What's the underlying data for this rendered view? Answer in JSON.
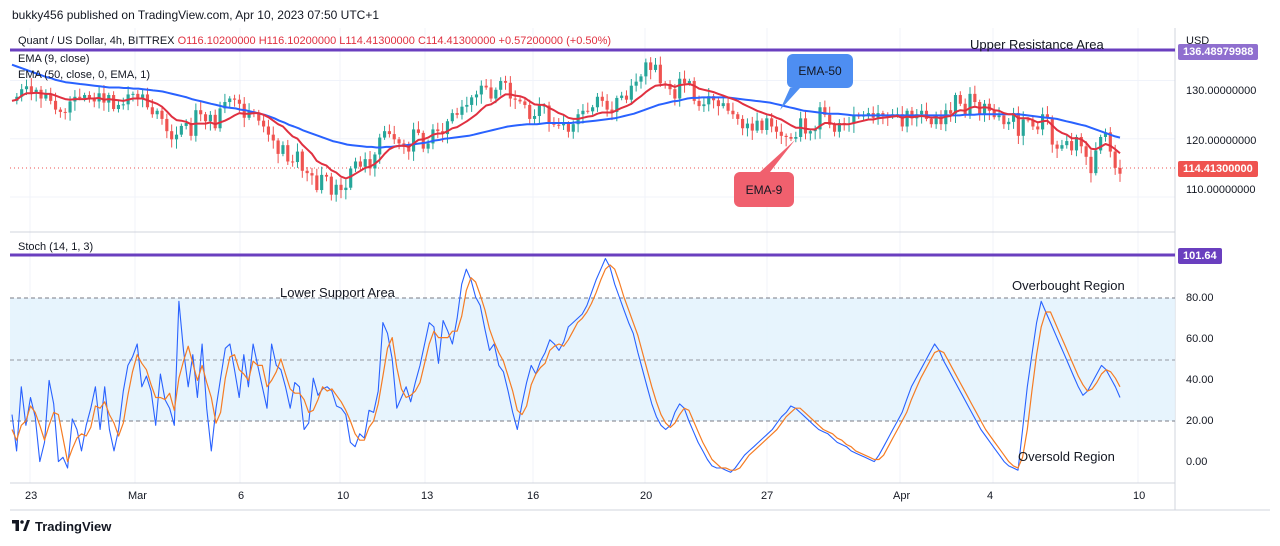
{
  "header": {
    "publisher": "bukky456 published on TradingView.com, Apr 10, 2023 07:50 UTC+1"
  },
  "legend": {
    "symbol": "Quant / US Dollar, 4h, BITTREX",
    "ohlc": "O116.10200000 H116.10200000 L114.41300000 C114.41300000",
    "change": "+0.57200000 (+0.50%)",
    "ema9": "EMA (9, close)",
    "ema50": "EMA (50, close, 0, EMA, 1)",
    "stoch": "Stoch (14, 1, 3)"
  },
  "annotations": {
    "upper_resistance": "Upper Resistance Area",
    "lower_support": "Lower Support Area",
    "overbought": "Overbought Region",
    "oversold": "Oversold Region",
    "ema50_callout": "EMA-50",
    "ema9_callout": "EMA-9"
  },
  "price_axis": {
    "currency": "USD",
    "top_tag": "136.48979988",
    "ticks": [
      "130.00000000",
      "120.00000000",
      "110.00000000"
    ],
    "last_price": "114.41300000"
  },
  "stoch_axis": {
    "top_tag": "101.64",
    "ticks": [
      "80.00",
      "60.00",
      "40.00",
      "20.00",
      "0.00"
    ]
  },
  "time_axis": [
    "23",
    "Mar",
    "6",
    "10",
    "13",
    "16",
    "20",
    "27",
    "Apr",
    "4",
    "10"
  ],
  "footer": {
    "brand": "TradingView"
  },
  "colors": {
    "up": "#26a69a",
    "down": "#ef5350",
    "ema9": "#e03040",
    "ema50": "#2962ff",
    "level": "#6a3fbf",
    "stoch_k": "#2962ff",
    "stoch_d": "#f57c24",
    "band": "#e3f2fd",
    "ema50_callout": "#4e8ef2",
    "ema9_callout": "#f0606e"
  },
  "chart_data": [
    {
      "type": "candlestick",
      "title": "Quant / US Dollar, 4h, BITTREX",
      "ylim": [
        104,
        139
      ],
      "resistance_level": 136.49,
      "last_close": 114.413,
      "close_series": [
        126.5,
        127.2,
        128.5,
        129.0,
        127.8,
        128.4,
        126.9,
        127.6,
        126.5,
        125.0,
        124.6,
        124.5,
        126.4,
        127.2,
        127.0,
        127.5,
        127.0,
        126.4,
        127.8,
        126.2,
        127.5,
        125.1,
        125.8,
        125.9,
        127.6,
        127.7,
        127.0,
        127.6,
        125.4,
        124.2,
        124.8,
        123.4,
        121.3,
        119.9,
        120.7,
        122.2,
        122.7,
        120.5,
        124.9,
        124.2,
        123.0,
        124.1,
        121.8,
        125.2,
        126.3,
        126.9,
        126.7,
        126.0,
        123.6,
        124.7,
        124.3,
        123.1,
        122.1,
        120.7,
        119.7,
        117.4,
        118.9,
        116.1,
        116.0,
        117.8,
        114.5,
        114.1,
        113.7,
        111.2,
        113.8,
        113.5,
        110.4,
        112.1,
        111.2,
        111.6,
        114.9,
        116.1,
        115.2,
        116.5,
        114.9,
        117.3,
        120.2,
        121.3,
        120.8,
        119.9,
        119.2,
        118.6,
        117.8,
        121.6,
        121.0,
        118.3,
        119.2,
        121.6,
        121.3,
        120.8,
        123.0,
        124.4,
        124.1,
        125.5,
        125.8,
        127.1,
        127.6,
        129.1,
        128.8,
        126.9,
        128.4,
        129.9,
        129.6,
        126.9,
        126.7,
        126.4,
        125.8,
        123.4,
        123.9,
        125.7,
        125.7,
        122.8,
        122.4,
        122.3,
        122.6,
        121.2,
        122.5,
        124.2,
        124.8,
        124.7,
        125.4,
        127.2,
        126.5,
        125.0,
        124.6,
        127.0,
        127.4,
        126.7,
        129.1,
        129.8,
        130.7,
        133.1,
        131.8,
        132.7,
        129.5,
        129.4,
        128.5,
        126.9,
        130.3,
        129.5,
        129.9,
        126.5,
        125.6,
        125.9,
        127.3,
        126.6,
        125.6,
        126.1,
        124.8,
        124.2,
        123.4,
        121.8,
        122.6,
        121.4,
        123.1,
        121.5,
        123.5,
        122.1,
        121.2,
        120.5,
        120.3,
        120.0,
        120.3,
        123.5,
        120.9,
        121.3,
        121.6,
        125.4,
        124.1,
        122.4,
        121.2,
        122.7,
        122.6,
        122.6,
        124.1,
        123.8,
        124.1,
        124.4,
        123.6,
        124.4,
        123.9,
        123.8,
        124.2,
        124.2,
        122.1,
        124.8,
        123.5,
        124.2,
        124.8,
        123.4,
        122.5,
        124.0,
        122.5,
        124.9,
        124.3,
        127.5,
        126.0,
        124.2,
        127.7,
        126.3,
        124.3,
        126.0,
        124.8,
        123.7,
        124.0,
        122.5,
        122.9,
        124.4,
        120.5,
        123.3,
        123.2,
        122.1,
        121.6,
        124.2,
        123.6,
        119.0,
        118.3,
        118.9,
        119.6,
        118.0,
        120.3,
        118.7,
        116.9,
        114.1,
        118.0,
        120.3,
        121.1,
        117.8,
        115.0,
        114.0
      ]
    },
    {
      "type": "line",
      "title": "EMA (9, close)",
      "values": [
        126.5,
        126.7,
        127.4,
        127.8,
        127.8,
        127.9,
        127.8,
        127.7,
        127.7,
        127.4,
        127.1,
        126.8,
        126.7,
        126.8,
        126.8,
        126.8,
        126.9,
        126.9,
        127.0,
        126.7,
        126.8,
        126.7,
        126.6,
        126.5,
        126.7,
        126.9,
        126.9,
        126.9,
        126.6,
        126.3,
        126.0,
        125.5,
        124.7,
        123.8,
        123.2,
        123.1,
        122.9,
        122.5,
        122.6,
        122.6,
        122.6,
        122.8,
        122.5,
        122.8,
        123.1,
        123.5,
        124.0,
        124.4,
        124.3,
        124.3,
        124.4,
        124.4,
        124.1,
        123.7,
        123.1,
        122.5,
        122.1,
        121.2,
        120.4,
        120.0,
        119.0,
        118.2,
        117.4,
        116.2,
        115.7,
        115.4,
        114.6,
        114.2,
        113.5,
        113.2,
        113.5,
        114.0,
        114.5,
        115.0,
        115.2,
        115.7,
        116.4,
        117.4,
        118.2,
        118.6,
        118.8,
        118.8,
        118.6,
        119.2,
        119.8,
        119.9,
        120.2,
        120.7,
        120.9,
        120.9,
        121.3,
        121.8,
        122.0,
        122.5,
        123.0,
        123.6,
        124.2,
        125.0,
        125.7,
        125.9,
        126.4,
        127.1,
        127.6,
        127.6,
        127.4,
        127.3,
        127.0,
        126.4,
        125.9,
        125.8,
        125.8,
        125.3,
        124.9,
        124.4,
        124.1,
        123.6,
        123.4,
        123.4,
        123.6,
        123.8,
        123.9,
        124.3,
        124.5,
        124.5,
        124.5,
        124.9,
        125.3,
        125.6,
        126.0,
        126.7,
        127.3,
        128.0,
        128.6,
        129.1,
        129.2,
        129.3,
        129.2,
        128.9,
        129.2,
        129.3,
        129.4,
        129.1,
        128.6,
        128.4,
        128.2,
        128.0,
        127.7,
        127.4,
        127.1,
        126.8,
        126.5,
        126.0,
        125.6,
        125.2,
        124.8,
        124.5,
        124.2,
        124.0,
        123.6,
        123.3,
        122.8,
        122.3,
        121.9,
        121.9,
        121.7,
        121.6,
        121.6,
        122.2,
        122.7,
        122.7,
        122.5,
        122.5,
        122.5,
        122.5,
        122.7,
        122.9,
        123.1,
        123.3,
        123.3,
        123.5,
        123.6,
        123.7,
        123.8,
        123.9,
        123.6,
        123.8,
        123.7,
        123.8,
        123.9,
        123.8,
        123.6,
        123.7,
        123.5,
        123.8,
        123.9,
        124.6,
        124.9,
        124.8,
        125.3,
        125.5,
        125.3,
        125.4,
        125.3,
        124.9,
        124.8,
        124.4,
        124.2,
        124.2,
        123.5,
        123.5,
        123.5,
        123.2,
        122.8,
        123.0,
        123.1,
        122.3,
        121.5,
        121.0,
        120.7,
        120.1,
        120.1,
        119.9,
        119.3,
        118.3,
        118.2,
        118.6,
        119.1,
        118.8,
        118.2,
        117.5
      ]
    },
    {
      "type": "line",
      "title": "EMA (50, close, 0, EMA, 1)",
      "values": [
        132.7,
        132.4,
        132.1,
        131.8,
        131.5,
        131.2,
        130.9,
        130.6,
        130.4,
        130.1,
        129.9,
        129.7,
        129.6,
        129.5,
        129.4,
        129.3,
        129.2,
        129.1,
        129.0,
        128.9,
        128.8,
        128.8,
        128.8,
        128.7,
        128.7,
        128.6,
        128.6,
        128.5,
        128.4,
        128.3,
        128.2,
        128.1,
        127.9,
        127.7,
        127.5,
        127.3,
        127.1,
        126.8,
        126.6,
        126.4,
        126.2,
        126.0,
        125.8,
        125.6,
        125.4,
        125.3,
        125.2,
        125.0,
        124.9,
        124.7,
        124.5,
        124.3,
        124.1,
        123.8,
        123.5,
        123.1,
        122.8,
        122.4,
        122.1,
        121.8,
        121.4,
        121.1,
        120.8,
        120.5,
        120.2,
        119.9,
        119.6,
        119.4,
        119.2,
        119.0,
        118.9,
        118.8,
        118.7,
        118.6,
        118.6,
        118.5,
        118.5,
        118.6,
        118.6,
        118.7,
        118.8,
        118.9,
        119.0,
        119.1,
        119.2,
        119.3,
        119.5,
        119.7,
        119.8,
        120.0,
        120.1,
        120.2,
        120.3,
        120.4,
        120.5,
        120.7,
        120.9,
        121.1,
        121.3,
        121.5,
        121.7,
        121.9,
        122.1,
        122.2,
        122.3,
        122.4,
        122.5,
        122.5,
        122.5,
        122.6,
        122.7,
        122.7,
        122.7,
        122.7,
        122.7,
        122.7,
        122.8,
        122.8,
        122.9,
        123.0,
        123.1,
        123.2,
        123.3,
        123.4,
        123.5,
        123.7,
        123.9,
        124.1,
        124.3,
        124.6,
        124.9,
        125.2,
        125.5,
        125.8,
        126.0,
        126.2,
        126.4,
        126.5,
        126.7,
        126.9,
        127.0,
        127.0,
        127.1,
        127.1,
        127.1,
        127.1,
        127.1,
        127.1,
        127.0,
        126.9,
        126.8,
        126.7,
        126.6,
        126.5,
        126.4,
        126.3,
        126.2,
        126.0,
        125.8,
        125.6,
        125.4,
        125.2,
        125.0,
        124.8,
        124.7,
        124.6,
        124.5,
        124.4,
        124.3,
        124.3,
        124.3,
        124.2,
        124.1,
        124.0,
        124.0,
        124.0,
        124.0,
        124.0,
        124.0,
        124.0,
        124.0,
        124.0,
        124.0,
        124.0,
        124.0,
        124.0,
        124.0,
        124.0,
        124.0,
        124.0,
        124.0,
        124.0,
        124.0,
        124.0,
        124.0,
        124.0,
        124.1,
        124.1,
        124.1,
        124.2,
        124.2,
        124.2,
        124.2,
        124.2,
        124.2,
        124.2,
        124.2,
        124.2,
        124.1,
        124.0,
        123.9,
        123.8,
        123.7,
        123.6,
        123.5,
        123.4,
        123.2,
        123.0,
        122.8,
        122.6,
        122.4,
        122.2,
        121.9,
        121.6,
        121.3,
        121.0,
        120.7,
        120.4,
        120.2
      ]
    },
    {
      "type": "line",
      "title": "Stoch (14, 1, 3)",
      "ylim": [
        -5,
        101.64
      ],
      "levels": [
        80,
        50,
        20
      ],
      "k": [
        27,
        10,
        40,
        22,
        35,
        26,
        5,
        14,
        43,
        32,
        5,
        7,
        2,
        25,
        20,
        10,
        22,
        30,
        40,
        20,
        40,
        20,
        10,
        20,
        38,
        50,
        54,
        60,
        40,
        45,
        38,
        22,
        46,
        34,
        30,
        22,
        80,
        57,
        40,
        55,
        35,
        60,
        30,
        10,
        30,
        44,
        58,
        60,
        48,
        35,
        55,
        40,
        60,
        50,
        40,
        30,
        60,
        50,
        48,
        40,
        30,
        42,
        40,
        20,
        23,
        44,
        36,
        39,
        40,
        38,
        31,
        30,
        27,
        14,
        12,
        18,
        16,
        29,
        28,
        38,
        70,
        65,
        53,
        30,
        35,
        40,
        33,
        42,
        50,
        60,
        70,
        68,
        51,
        71,
        66,
        60,
        72,
        88,
        95,
        90,
        82,
        78,
        67,
        57,
        60,
        50,
        47,
        38,
        28,
        20,
        32,
        42,
        50,
        46,
        52,
        56,
        62,
        60,
        57,
        61,
        68,
        70,
        72,
        74,
        78,
        84,
        90,
        95,
        100,
        96,
        88,
        82,
        76,
        70,
        65,
        56,
        48,
        40,
        32,
        26,
        22,
        20,
        22,
        28,
        32,
        30,
        24,
        19,
        14,
        10,
        6,
        3,
        2,
        2,
        1,
        0,
        2,
        5,
        8,
        10,
        12,
        14,
        16,
        18,
        20,
        23,
        26,
        28,
        31,
        30,
        28,
        26,
        24,
        22,
        20,
        19,
        18,
        16,
        14,
        13,
        12,
        10,
        9,
        8,
        7,
        6,
        5,
        8,
        12,
        16,
        20,
        24,
        28,
        34,
        40,
        44,
        48,
        52,
        56,
        60,
        57,
        52,
        48,
        44,
        40,
        36,
        32,
        28,
        24,
        20,
        17,
        14,
        11,
        8,
        5,
        3,
        2,
        1,
        20,
        40,
        55,
        70,
        80,
        75,
        70,
        65,
        60,
        55,
        50,
        45,
        40,
        36,
        38,
        42,
        46,
        50,
        48,
        44,
        40,
        35
      ],
      "d": [
        20,
        15,
        22,
        24,
        31,
        28,
        22,
        15,
        22,
        28,
        27,
        16,
        5,
        11,
        16,
        18,
        17,
        21,
        31,
        30,
        33,
        27,
        23,
        17,
        23,
        36,
        47,
        55,
        51,
        48,
        41,
        35,
        35,
        34,
        37,
        29,
        44,
        52,
        59,
        51,
        43,
        50,
        42,
        35,
        23,
        28,
        44,
        54,
        55,
        48,
        46,
        43,
        52,
        50,
        50,
        40,
        43,
        47,
        53,
        46,
        39,
        37,
        37,
        34,
        28,
        29,
        34,
        40,
        38,
        39,
        36,
        33,
        29,
        24,
        18,
        15,
        15,
        21,
        24,
        32,
        45,
        58,
        63,
        49,
        39,
        35,
        36,
        38,
        42,
        51,
        60,
        66,
        63,
        63,
        63,
        66,
        66,
        73,
        85,
        91,
        89,
        83,
        76,
        67,
        61,
        56,
        52,
        45,
        38,
        29,
        27,
        31,
        41,
        46,
        49,
        51,
        57,
        59,
        60,
        59,
        62,
        66,
        70,
        72,
        75,
        79,
        84,
        90,
        95,
        97,
        95,
        89,
        82,
        76,
        70,
        64,
        56,
        48,
        40,
        33,
        27,
        23,
        21,
        23,
        27,
        30,
        29,
        24,
        19,
        14,
        10,
        6,
        4,
        2,
        2,
        1,
        1,
        2,
        5,
        8,
        10,
        12,
        14,
        16,
        18,
        20,
        23,
        26,
        28,
        30,
        30,
        28,
        26,
        24,
        22,
        20,
        19,
        18,
        16,
        15,
        13,
        12,
        10,
        9,
        8,
        7,
        6,
        6,
        8,
        12,
        16,
        20,
        24,
        28,
        34,
        39,
        44,
        48,
        52,
        56,
        57,
        56,
        52,
        48,
        44,
        40,
        36,
        32,
        28,
        24,
        20,
        17,
        14,
        11,
        8,
        5,
        3,
        2,
        7,
        20,
        38,
        55,
        68,
        75,
        75,
        70,
        65,
        60,
        55,
        50,
        45,
        41,
        38,
        39,
        42,
        46,
        48,
        47,
        44,
        40
      ]
    }
  ]
}
